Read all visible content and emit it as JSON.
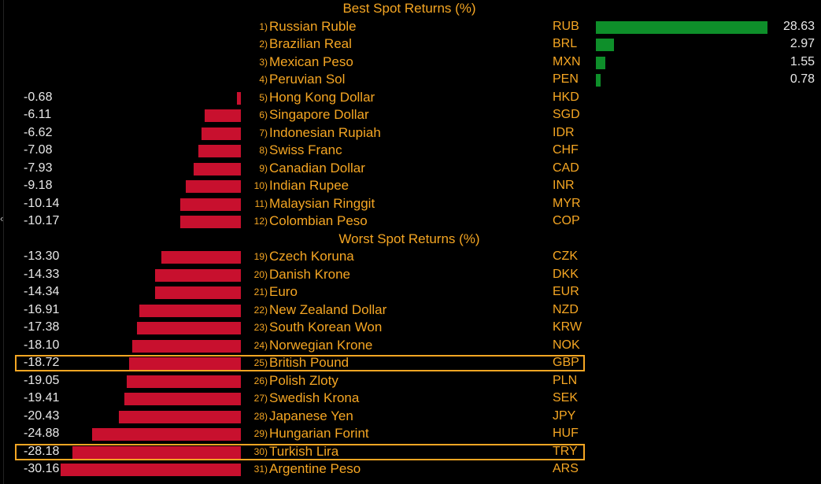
{
  "chart_data": {
    "type": "bar",
    "orientation": "horizontal",
    "unit": "%",
    "best": {
      "title": "Best Spot Returns (%)",
      "rows": [
        {
          "rank": "1)",
          "name": "Russian Ruble",
          "code": "RUB",
          "value": 28.63
        },
        {
          "rank": "2)",
          "name": "Brazilian Real",
          "code": "BRL",
          "value": 2.97
        },
        {
          "rank": "3)",
          "name": "Mexican Peso",
          "code": "MXN",
          "value": 1.55
        },
        {
          "rank": "4)",
          "name": "Peruvian Sol",
          "code": "PEN",
          "value": 0.78
        },
        {
          "rank": "5)",
          "name": "Hong Kong Dollar",
          "code": "HKD",
          "value": -0.68
        },
        {
          "rank": "6)",
          "name": "Singapore Dollar",
          "code": "SGD",
          "value": -6.11
        },
        {
          "rank": "7)",
          "name": "Indonesian Rupiah",
          "code": "IDR",
          "value": -6.62
        },
        {
          "rank": "8)",
          "name": "Swiss Franc",
          "code": "CHF",
          "value": -7.08
        },
        {
          "rank": "9)",
          "name": "Canadian Dollar",
          "code": "CAD",
          "value": -7.93
        },
        {
          "rank": "10)",
          "name": "Indian Rupee",
          "code": "INR",
          "value": -9.18
        },
        {
          "rank": "11)",
          "name": "Malaysian Ringgit",
          "code": "MYR",
          "value": -10.14
        },
        {
          "rank": "12)",
          "name": "Colombian Peso",
          "code": "COP",
          "value": -10.17
        }
      ]
    },
    "worst": {
      "title": "Worst Spot Returns (%)",
      "rows": [
        {
          "rank": "19)",
          "name": "Czech Koruna",
          "code": "CZK",
          "value": -13.3
        },
        {
          "rank": "20)",
          "name": "Danish Krone",
          "code": "DKK",
          "value": -14.33
        },
        {
          "rank": "21)",
          "name": "Euro",
          "code": "EUR",
          "value": -14.34
        },
        {
          "rank": "22)",
          "name": "New Zealand Dollar",
          "code": "NZD",
          "value": -16.91
        },
        {
          "rank": "23)",
          "name": "South Korean Won",
          "code": "KRW",
          "value": -17.38
        },
        {
          "rank": "24)",
          "name": "Norwegian Krone",
          "code": "NOK",
          "value": -18.1
        },
        {
          "rank": "25)",
          "name": "British Pound",
          "code": "GBP",
          "value": -18.72,
          "highlighted": true
        },
        {
          "rank": "26)",
          "name": "Polish Zloty",
          "code": "PLN",
          "value": -19.05
        },
        {
          "rank": "27)",
          "name": "Swedish Krona",
          "code": "SEK",
          "value": -19.41
        },
        {
          "rank": "28)",
          "name": "Japanese Yen",
          "code": "JPY",
          "value": -20.43
        },
        {
          "rank": "29)",
          "name": "Hungarian Forint",
          "code": "HUF",
          "value": -24.88
        },
        {
          "rank": "30)",
          "name": "Turkish Lira",
          "code": "TRY",
          "value": -28.18,
          "highlighted": true
        },
        {
          "rank": "31)",
          "name": "Argentine Peso",
          "code": "ARS",
          "value": -30.16
        }
      ]
    }
  },
  "colors": {
    "background": "#000000",
    "label": "#f5a623",
    "value_text": "#e8e8e8",
    "negative_bar": "#c8102e",
    "positive_bar": "#0e8f2a",
    "highlight": "#f5a623"
  }
}
